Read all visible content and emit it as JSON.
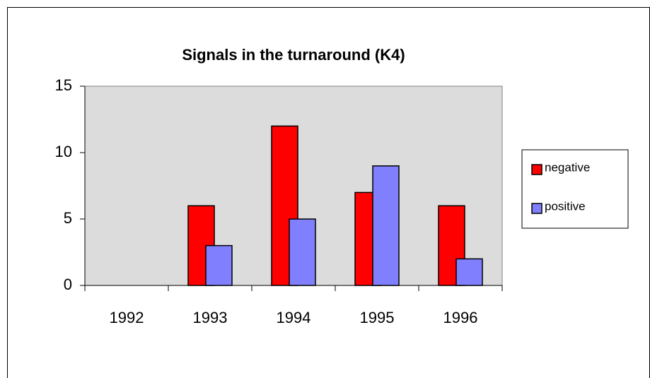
{
  "chart_data": {
    "type": "bar",
    "title": "Signals in the turnaround (K4)",
    "categories": [
      "1992",
      "1993",
      "1994",
      "1995",
      "1996"
    ],
    "series": [
      {
        "name": "negative",
        "color": "#ff0000",
        "values": [
          0,
          6,
          12,
          7,
          6
        ]
      },
      {
        "name": "positive",
        "color": "#8080ff",
        "values": [
          0,
          3,
          5,
          9,
          2
        ]
      }
    ],
    "ylim": [
      0,
      15
    ],
    "yticks": [
      0,
      5,
      10,
      15
    ],
    "grid": false,
    "legend": "right"
  }
}
